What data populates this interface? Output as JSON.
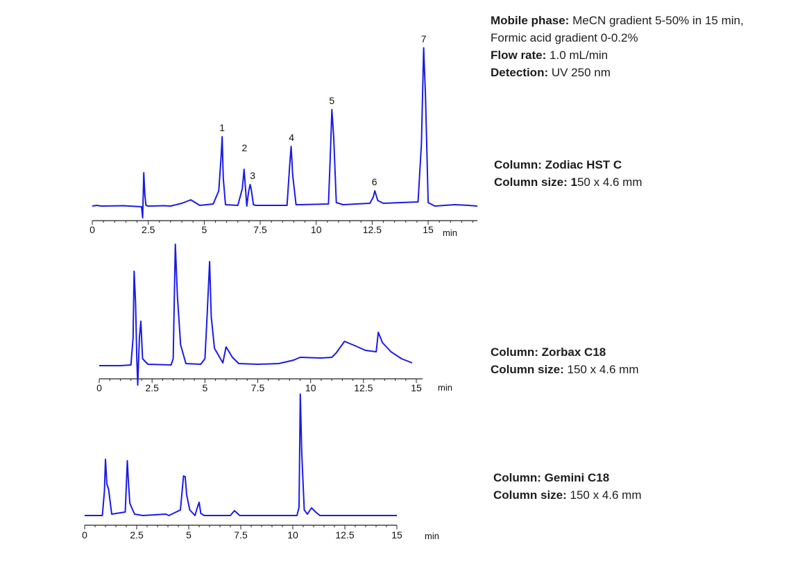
{
  "conditions": {
    "mobile_phase_label": "Mobile phase:",
    "mobile_phase_value": " MeCN gradient 5-50% in 15 min,",
    "mobile_phase_value_2": "Formic acid gradient 0-0.2%",
    "flow_rate_label": "Flow rate:",
    "flow_rate_value": " 1.0 mL/min",
    "detection_label": "Detection:",
    "detection_value": " UV 250 nm"
  },
  "columns": [
    {
      "column_label": "Column:",
      "column_name": " Zodiac HST C",
      "size_label": "Column size: 1",
      "size_value": "50 x 4.6 mm"
    },
    {
      "column_label": "Column:",
      "column_name": " Zorbax C18",
      "size_label": "Column size:",
      "size_value": " 150 x 4.6 mm"
    },
    {
      "column_label": "Column:",
      "column_name": " Gemini C18",
      "size_label": "Column size:",
      "size_value": " 150 x 4.6 mm"
    }
  ],
  "colors": {
    "trace": "#1a1ae6",
    "axis": "#222222",
    "text": "#1c1c1c"
  },
  "chart_data": [
    {
      "type": "line",
      "title": "Column: Zodiac HST C",
      "xlabel": "min",
      "ylabel": "",
      "xlim": [
        0,
        17.2
      ],
      "xticks": [
        "0",
        "2.5",
        "5",
        "7.5",
        "10",
        "12.5",
        "15"
      ],
      "grid": false,
      "peak_labels": [
        {
          "label": "1",
          "x": 5.8
        },
        {
          "label": "2",
          "x": 6.8
        },
        {
          "label": "3",
          "x": 7.1
        },
        {
          "label": "4",
          "x": 8.9
        },
        {
          "label": "5",
          "x": 10.7
        },
        {
          "label": "6",
          "x": 12.6
        },
        {
          "label": "7",
          "x": 14.8
        }
      ],
      "series": [
        {
          "name": "UV 250 nm",
          "x": [
            0,
            0.2,
            0.4,
            1.4,
            2.2,
            2.25,
            2.3,
            2.35,
            2.4,
            2.5,
            3.2,
            3.5,
            4.0,
            4.4,
            4.8,
            5.4,
            5.65,
            5.75,
            5.8,
            5.85,
            5.95,
            6.5,
            6.7,
            6.78,
            6.82,
            6.9,
            6.98,
            7.05,
            7.1,
            7.2,
            7.3,
            8.7,
            8.82,
            8.88,
            8.95,
            9.1,
            9.3,
            10.55,
            10.65,
            10.7,
            10.78,
            10.9,
            11.2,
            12.4,
            12.55,
            12.62,
            12.75,
            13.0,
            14.55,
            14.7,
            14.8,
            14.88,
            15.0,
            15.3,
            16.2,
            16.8,
            17.2
          ],
          "values": [
            0,
            1,
            0,
            0.5,
            -1,
            -17,
            48,
            16,
            1,
            0,
            0.5,
            0,
            4,
            9,
            1,
            3,
            22,
            70,
            100,
            40,
            2,
            1,
            25,
            53,
            35,
            0,
            20,
            31,
            24,
            2,
            1,
            1,
            60,
            86,
            45,
            2,
            2,
            3,
            90,
            139,
            100,
            5,
            2,
            4,
            13,
            22,
            8,
            4,
            6,
            90,
            228,
            160,
            5,
            0,
            2,
            1,
            0
          ]
        }
      ]
    },
    {
      "type": "line",
      "title": "Column: Zorbax C18",
      "xlabel": "min",
      "ylabel": "",
      "xlim": [
        0,
        15.5
      ],
      "xticks": [
        "0",
        "2.5",
        "5",
        "7.5",
        "10",
        "12.5",
        "15"
      ],
      "grid": false,
      "series": [
        {
          "name": "UV 250 nm",
          "x": [
            0,
            1.0,
            1.5,
            1.6,
            1.65,
            1.72,
            1.78,
            1.82,
            1.9,
            1.97,
            2.05,
            2.3,
            3.4,
            3.5,
            3.6,
            3.7,
            3.85,
            4.1,
            4.8,
            5.0,
            5.1,
            5.22,
            5.3,
            5.45,
            5.85,
            6.0,
            6.3,
            6.6,
            7.5,
            8.5,
            9.2,
            9.5,
            10.5,
            11.0,
            11.2,
            11.6,
            12.0,
            12.6,
            13.1,
            13.2,
            13.4,
            13.8,
            14.3,
            14.8
          ],
          "values": [
            0,
            0,
            1,
            40,
            136,
            90,
            10,
            -28,
            40,
            64,
            10,
            2,
            1,
            10,
            175,
            100,
            30,
            3,
            2,
            10,
            70,
            150,
            70,
            25,
            4,
            27,
            12,
            3,
            2,
            3,
            8,
            12,
            11,
            12,
            18,
            35,
            30,
            22,
            20,
            48,
            33,
            20,
            10,
            4
          ]
        }
      ]
    },
    {
      "type": "line",
      "title": "Column: Gemini C18",
      "xlabel": "min",
      "ylabel": "",
      "xlim": [
        0,
        15
      ],
      "xticks": [
        "0",
        "2.5",
        "5",
        "7.5",
        "10",
        "12.5",
        "15"
      ],
      "grid": false,
      "series": [
        {
          "name": "UV 250 nm",
          "x": [
            0,
            0.85,
            0.95,
            1.0,
            1.07,
            1.15,
            1.3,
            1.95,
            2.05,
            2.1,
            2.17,
            2.25,
            2.4,
            2.8,
            3.9,
            4.05,
            4.6,
            4.75,
            4.83,
            4.9,
            5.05,
            5.3,
            5.42,
            5.5,
            5.58,
            5.75,
            7.0,
            7.2,
            7.45,
            10.2,
            10.3,
            10.36,
            10.43,
            10.55,
            10.7,
            10.9,
            11.1,
            11.3,
            15.0
          ],
          "values": [
            0,
            0,
            35,
            81,
            45,
            38,
            2,
            5,
            79,
            50,
            18,
            12,
            2,
            0,
            2,
            0,
            8,
            57,
            56,
            30,
            8,
            0,
            12,
            19,
            3,
            0,
            0,
            7,
            0,
            0,
            12,
            175,
            90,
            8,
            2,
            11,
            5,
            0,
            0
          ]
        }
      ]
    }
  ]
}
